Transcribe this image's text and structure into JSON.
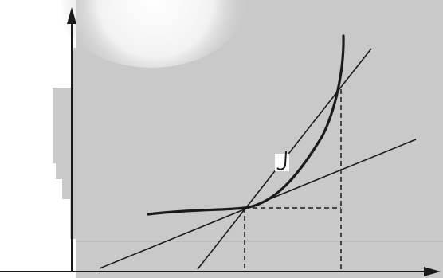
{
  "diagram": {
    "kind": "curve-with-tangent-and-secant",
    "labels": [],
    "colors": {
      "ink": "#1a1a1a",
      "paper_gray": "#c9c9c9",
      "paper_light": "#e6e6e6",
      "background": "#ffffff"
    }
  }
}
